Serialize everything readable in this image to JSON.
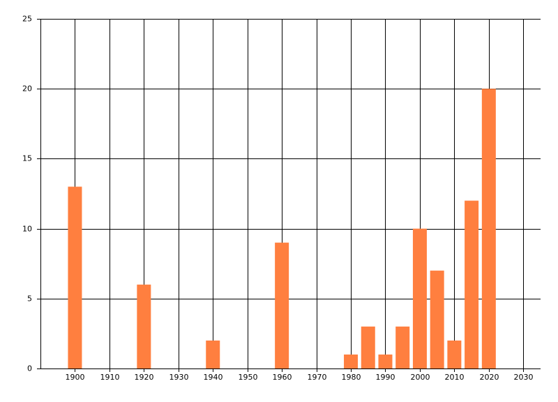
{
  "chart_data": {
    "type": "bar",
    "x": [
      1900,
      1920,
      1940,
      1960,
      1980,
      1985,
      1990,
      1995,
      2000,
      2005,
      2010,
      2015,
      2020
    ],
    "values": [
      13,
      6,
      2,
      9,
      1,
      3,
      1,
      3,
      10,
      7,
      2,
      12,
      20
    ],
    "color": "#ff7f3f",
    "xlim": [
      1890,
      2035
    ],
    "xticks": [
      1900,
      1910,
      1920,
      1930,
      1940,
      1950,
      1960,
      1970,
      1980,
      1990,
      2000,
      2010,
      2020,
      2030
    ],
    "ylim": [
      0,
      25
    ],
    "yticks": [
      0,
      5,
      10,
      15,
      20,
      25
    ],
    "grid": true
  }
}
